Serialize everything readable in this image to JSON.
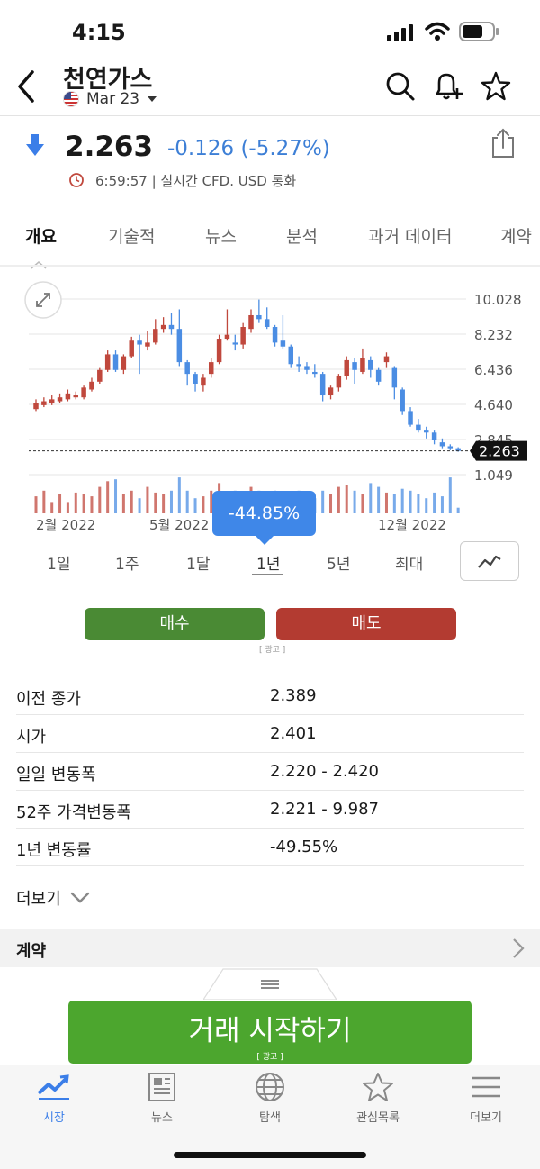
{
  "status": {
    "time": "4:15"
  },
  "header": {
    "title": "천연가스",
    "contract": "Mar 23"
  },
  "quote": {
    "price": "2.263",
    "change": "-0.126 (-5.27%)",
    "meta": "6:59:57 | 실시간 CFD. USD 통화"
  },
  "tabs": [
    "개요",
    "기술적",
    "뉴스",
    "분석",
    "과거 데이터",
    "계약"
  ],
  "colors": {
    "up": "#c0483d",
    "down": "#4b8de3",
    "accent": "#3b7ee8",
    "buy": "#4a8a34",
    "sell": "#b33b31",
    "start": "#4ca62e"
  },
  "chart_data": {
    "type": "candlestick",
    "y_ticks": [
      "10.028",
      "8.232",
      "6.436",
      "4.640",
      "2.845",
      "1.049"
    ],
    "x_labels": [
      "2월 2022",
      "5월 2022",
      "12월 2022"
    ],
    "current_price_label": "2.263",
    "ylim": [
      1.049,
      10.028
    ],
    "candles": [
      {
        "o": 4.4,
        "c": 4.7,
        "h": 4.9,
        "l": 4.3
      },
      {
        "o": 4.6,
        "c": 4.8,
        "h": 5.0,
        "l": 4.5
      },
      {
        "o": 4.7,
        "c": 4.9,
        "h": 5.1,
        "l": 4.6
      },
      {
        "o": 4.8,
        "c": 5.0,
        "h": 5.2,
        "l": 4.7
      },
      {
        "o": 4.9,
        "c": 5.2,
        "h": 5.4,
        "l": 4.8
      },
      {
        "o": 5.0,
        "c": 5.1,
        "h": 5.3,
        "l": 4.9
      },
      {
        "o": 5.0,
        "c": 5.5,
        "h": 5.6,
        "l": 4.9
      },
      {
        "o": 5.4,
        "c": 5.8,
        "h": 6.0,
        "l": 5.3
      },
      {
        "o": 5.8,
        "c": 6.4,
        "h": 6.5,
        "l": 5.7
      },
      {
        "o": 6.4,
        "c": 7.2,
        "h": 7.4,
        "l": 6.3
      },
      {
        "o": 7.2,
        "c": 6.4,
        "h": 7.4,
        "l": 6.3
      },
      {
        "o": 6.4,
        "c": 7.1,
        "h": 7.2,
        "l": 6.2
      },
      {
        "o": 7.1,
        "c": 7.9,
        "h": 8.1,
        "l": 7.0
      },
      {
        "o": 7.9,
        "c": 7.7,
        "h": 8.2,
        "l": 6.2
      },
      {
        "o": 7.6,
        "c": 7.8,
        "h": 8.4,
        "l": 7.4
      },
      {
        "o": 7.8,
        "c": 8.5,
        "h": 9.0,
        "l": 7.7
      },
      {
        "o": 8.5,
        "c": 8.7,
        "h": 9.1,
        "l": 8.3
      },
      {
        "o": 8.7,
        "c": 8.5,
        "h": 9.3,
        "l": 8.2
      },
      {
        "o": 8.5,
        "c": 6.8,
        "h": 9.5,
        "l": 6.6
      },
      {
        "o": 6.8,
        "c": 6.2,
        "h": 6.9,
        "l": 5.6
      },
      {
        "o": 6.2,
        "c": 5.7,
        "h": 6.3,
        "l": 5.3
      },
      {
        "o": 5.6,
        "c": 6.0,
        "h": 6.2,
        "l": 5.3
      },
      {
        "o": 6.2,
        "c": 6.8,
        "h": 7.0,
        "l": 6.0
      },
      {
        "o": 6.8,
        "c": 8.0,
        "h": 8.2,
        "l": 6.7
      },
      {
        "o": 8.0,
        "c": 8.2,
        "h": 9.5,
        "l": 7.9
      },
      {
        "o": 7.8,
        "c": 7.7,
        "h": 8.2,
        "l": 7.4
      },
      {
        "o": 7.7,
        "c": 8.6,
        "h": 8.8,
        "l": 7.5
      },
      {
        "o": 8.5,
        "c": 9.2,
        "h": 9.5,
        "l": 8.3
      },
      {
        "o": 9.2,
        "c": 9.0,
        "h": 10.0,
        "l": 8.8
      },
      {
        "o": 9.0,
        "c": 8.6,
        "h": 9.6,
        "l": 8.5
      },
      {
        "o": 8.6,
        "c": 7.8,
        "h": 8.7,
        "l": 7.6
      },
      {
        "o": 7.9,
        "c": 7.6,
        "h": 9.2,
        "l": 7.5
      },
      {
        "o": 7.6,
        "c": 6.7,
        "h": 7.7,
        "l": 6.5
      },
      {
        "o": 6.7,
        "c": 6.6,
        "h": 7.1,
        "l": 6.3
      },
      {
        "o": 6.6,
        "c": 6.4,
        "h": 6.8,
        "l": 6.2
      },
      {
        "o": 6.3,
        "c": 6.2,
        "h": 6.7,
        "l": 6.0
      },
      {
        "o": 6.2,
        "c": 5.1,
        "h": 6.3,
        "l": 4.8
      },
      {
        "o": 5.1,
        "c": 5.5,
        "h": 5.6,
        "l": 4.9
      },
      {
        "o": 5.5,
        "c": 6.1,
        "h": 6.2,
        "l": 5.3
      },
      {
        "o": 6.1,
        "c": 6.9,
        "h": 7.1,
        "l": 5.9
      },
      {
        "o": 6.8,
        "c": 6.4,
        "h": 7.0,
        "l": 5.7
      },
      {
        "o": 6.3,
        "c": 7.0,
        "h": 7.5,
        "l": 6.2
      },
      {
        "o": 6.9,
        "c": 6.4,
        "h": 7.1,
        "l": 6.0
      },
      {
        "o": 6.4,
        "c": 5.8,
        "h": 6.5,
        "l": 5.6
      },
      {
        "o": 6.8,
        "c": 7.1,
        "h": 7.3,
        "l": 6.5
      },
      {
        "o": 6.5,
        "c": 5.5,
        "h": 6.6,
        "l": 4.9
      },
      {
        "o": 5.4,
        "c": 4.3,
        "h": 5.5,
        "l": 4.1
      },
      {
        "o": 4.3,
        "c": 3.6,
        "h": 4.5,
        "l": 3.5
      },
      {
        "o": 3.6,
        "c": 3.3,
        "h": 3.9,
        "l": 3.2
      },
      {
        "o": 3.3,
        "c": 3.2,
        "h": 3.5,
        "l": 2.9
      },
      {
        "o": 3.2,
        "c": 2.8,
        "h": 3.3,
        "l": 2.6
      },
      {
        "o": 2.7,
        "c": 2.5,
        "h": 2.9,
        "l": 2.4
      },
      {
        "o": 2.5,
        "c": 2.4,
        "h": 2.6,
        "l": 2.3
      },
      {
        "o": 2.4,
        "c": 2.26,
        "h": 2.45,
        "l": 2.22
      }
    ],
    "volume": [
      0.45,
      0.6,
      0.3,
      0.5,
      0.3,
      0.55,
      0.5,
      0.45,
      0.7,
      0.85,
      0.9,
      0.5,
      0.6,
      0.4,
      0.7,
      0.55,
      0.5,
      0.6,
      0.95,
      0.6,
      0.4,
      0.45,
      0.6,
      0.8,
      0.5,
      0.6,
      0.4,
      0.7,
      0.6,
      0.5,
      0.6,
      0.4,
      0.5,
      0.6,
      0.55,
      0.4,
      0.6,
      0.5,
      0.7,
      0.75,
      0.6,
      0.5,
      0.8,
      0.7,
      0.55,
      0.5,
      0.65,
      0.6,
      0.5,
      0.4,
      0.55,
      0.45,
      0.95,
      0.15
    ]
  },
  "periods": [
    "1일",
    "1주",
    "1달",
    "1년",
    "5년",
    "최대"
  ],
  "tooltip": "-44.85%",
  "actions": {
    "buy": "매수",
    "sell": "매도",
    "ad": "광고"
  },
  "stats": [
    {
      "label": "이전 종가",
      "value": "2.389"
    },
    {
      "label": "시가",
      "value": "2.401"
    },
    {
      "label": "일일 변동폭",
      "value": "2.220 - 2.420"
    },
    {
      "label": "52주 가격변동폭",
      "value": "2.221 - 9.987"
    },
    {
      "label": "1년 변동률",
      "value": "-49.55%"
    }
  ],
  "more": "더보기",
  "contract_section": "계약",
  "start_button": {
    "label": "거래 시작하기",
    "ad": "광고"
  },
  "nav": [
    {
      "label": "시장",
      "icon": "chart-icon"
    },
    {
      "label": "뉴스",
      "icon": "news-icon"
    },
    {
      "label": "탐색",
      "icon": "globe-icon"
    },
    {
      "label": "관심목록",
      "icon": "star-icon"
    },
    {
      "label": "더보기",
      "icon": "menu-icon"
    }
  ]
}
